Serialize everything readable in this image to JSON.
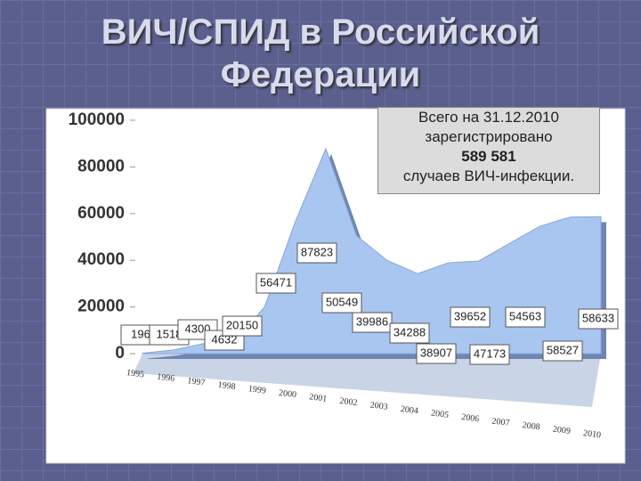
{
  "chart_data": {
    "type": "area",
    "title": "ВИЧ/СПИД в Российской Федерации",
    "annotation": [
      "Всего на 31.12.2010",
      "зарегистрировано",
      "589 581",
      "случаев ВИЧ-инфекции."
    ],
    "categories": [
      "1995",
      "1996",
      "1997",
      "1998",
      "1999",
      "2000",
      "2001",
      "2002",
      "2003",
      "2004",
      "2005",
      "2006",
      "2007",
      "2008",
      "2009",
      "2010"
    ],
    "values": [
      196,
      1518,
      4300,
      4632,
      20150,
      56471,
      87823,
      50549,
      39986,
      34288,
      38907,
      39652,
      47173,
      54563,
      58527,
      58633
    ],
    "color": "#a9c6f0",
    "ylim": [
      0,
      100000
    ],
    "yticks": [
      0,
      20000,
      40000,
      60000,
      80000,
      100000
    ]
  }
}
